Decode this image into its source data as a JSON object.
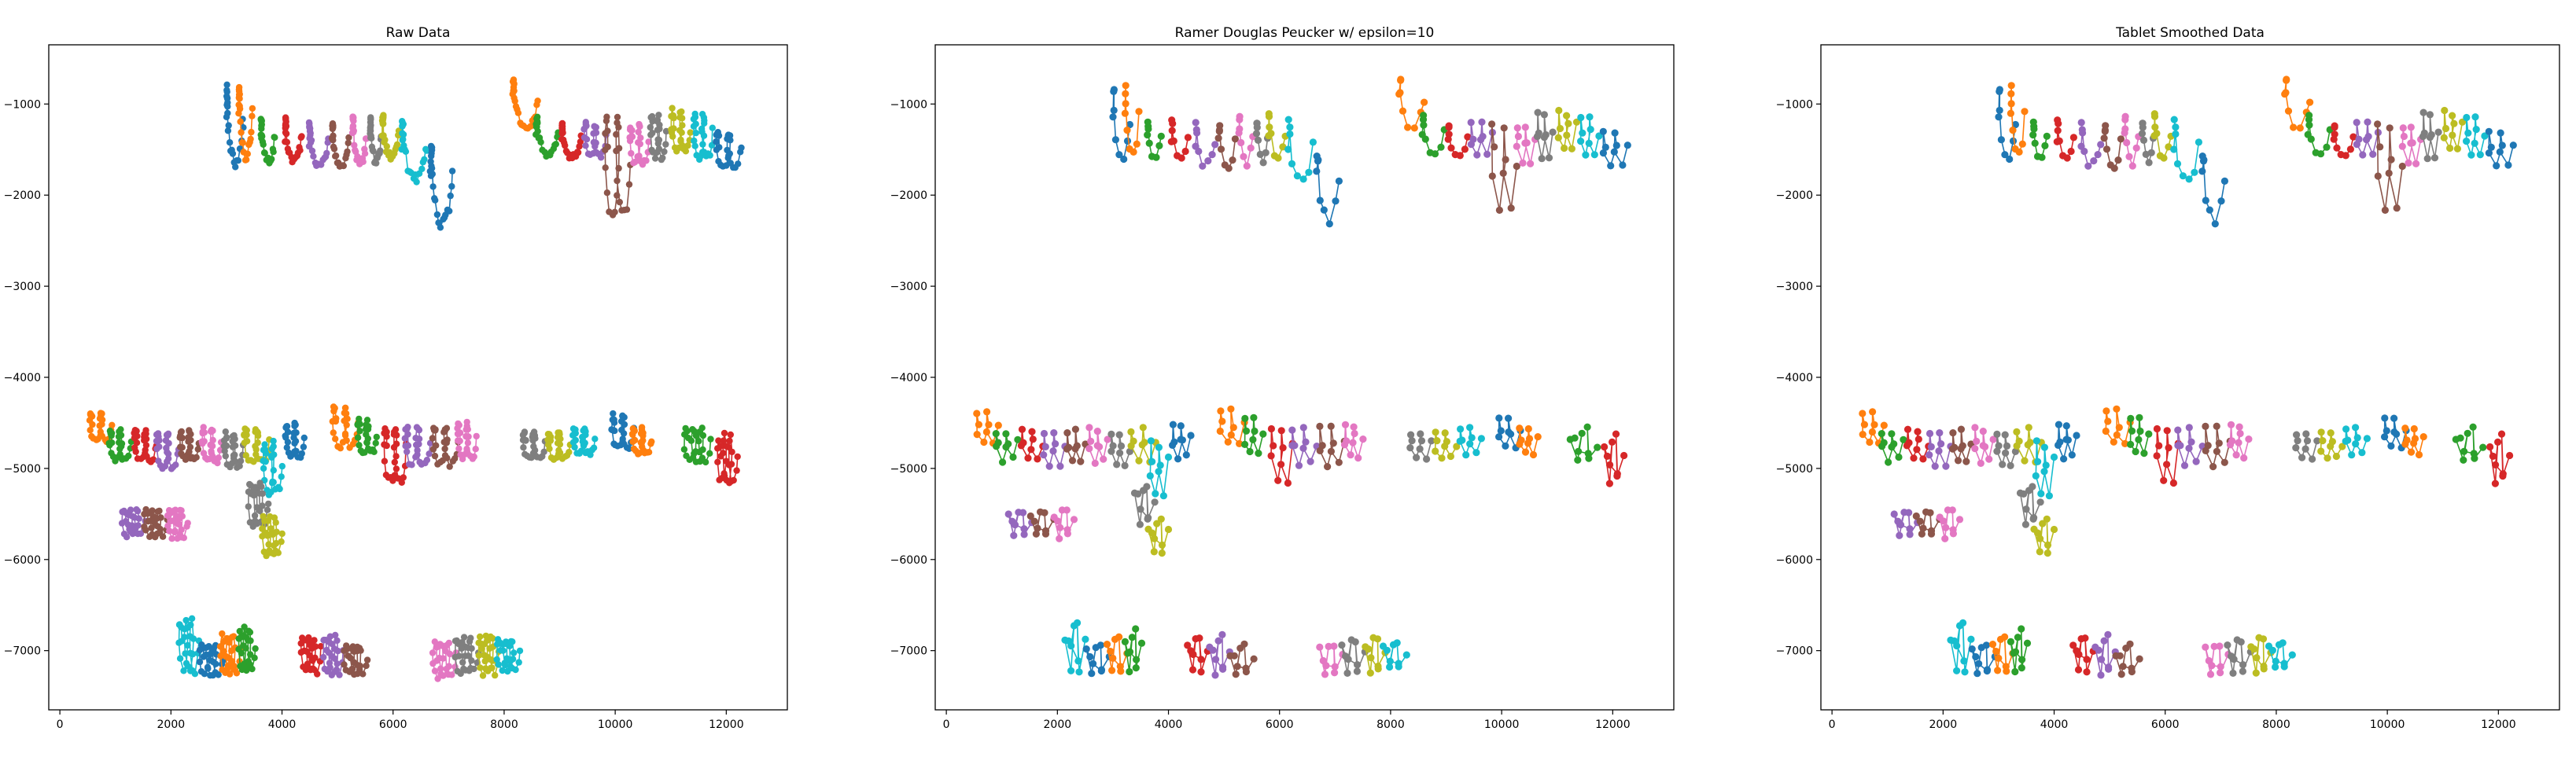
{
  "figure": {
    "panels": [
      {
        "title": "Raw Data"
      },
      {
        "title": "Ramer Douglas Peucker w/ epsilon=10"
      },
      {
        "title": "Tablet Smoothed Data"
      }
    ]
  },
  "chart_data": [
    {
      "type": "scatter",
      "title": "Raw Data",
      "xlabel": "",
      "ylabel": "",
      "xlim": [
        -200,
        13100
      ],
      "ylim": [
        -7650,
        -350
      ],
      "xticks": [
        0,
        2000,
        4000,
        6000,
        8000,
        10000,
        12000
      ],
      "xtick_labels": [
        "0",
        "2000",
        "4000",
        "6000",
        "8000",
        "10000",
        "12000"
      ],
      "yticks": [
        -1000,
        -2000,
        -3000,
        -4000,
        -5000,
        -6000,
        -7000
      ],
      "ytick_labels": [
        "−1000",
        "−2000",
        "−3000",
        "−4000",
        "−5000",
        "−6000",
        "−7000"
      ],
      "grid": false,
      "markers": "filled circles joined by lines",
      "point_density": "dense",
      "depicts": "handwritten pen strokes, each stroke its own color",
      "lines_of_writing": [
        "Handwriting Recognition",
        "the quick brown fox jumps over the lazy dog",
        "Best cake"
      ]
    },
    {
      "type": "scatter",
      "title": "Ramer Douglas Peucker w/ epsilon=10",
      "xlabel": "",
      "ylabel": "",
      "xlim": [
        -200,
        13100
      ],
      "ylim": [
        -7650,
        -350
      ],
      "xticks": [
        0,
        2000,
        4000,
        6000,
        8000,
        10000,
        12000
      ],
      "xtick_labels": [
        "0",
        "2000",
        "4000",
        "6000",
        "8000",
        "10000",
        "12000"
      ],
      "yticks": [
        -1000,
        -2000,
        -3000,
        -4000,
        -5000,
        -6000,
        -7000
      ],
      "ytick_labels": [
        "−1000",
        "−2000",
        "−3000",
        "−4000",
        "−5000",
        "−6000",
        "−7000"
      ],
      "grid": false,
      "markers": "filled circles joined by lines",
      "point_density": "sparse",
      "depicts": "handwritten pen strokes after Ramer-Douglas-Peucker simplification",
      "lines_of_writing": [
        "Handwriting Recognition",
        "the quick brown fox jumps over the lazy dog",
        "Best cake"
      ]
    },
    {
      "type": "scatter",
      "title": "Tablet Smoothed Data",
      "xlabel": "",
      "ylabel": "",
      "xlim": [
        -200,
        13100
      ],
      "ylim": [
        -7650,
        -350
      ],
      "xticks": [
        0,
        2000,
        4000,
        6000,
        8000,
        10000,
        12000
      ],
      "xtick_labels": [
        "0",
        "2000",
        "4000",
        "6000",
        "8000",
        "10000",
        "12000"
      ],
      "yticks": [
        -1000,
        -2000,
        -3000,
        -4000,
        -5000,
        -6000,
        -7000
      ],
      "ytick_labels": [
        "−1000",
        "−2000",
        "−3000",
        "−4000",
        "−5000",
        "−6000",
        "−7000"
      ],
      "grid": false,
      "markers": "filled circles joined by lines",
      "point_density": "sparse",
      "depicts": "handwritten pen strokes after tablet smoothing",
      "lines_of_writing": [
        "Handwriting Recognition",
        "the quick brown fox jumps over the lazy dog",
        "Best cake"
      ]
    }
  ],
  "style": {
    "colors": [
      "#1f77b4",
      "#ff7f0e",
      "#2ca02c",
      "#d62728",
      "#9467bd",
      "#8c564b",
      "#e377c2",
      "#7f7f7f",
      "#bcbd22",
      "#17becf"
    ]
  }
}
